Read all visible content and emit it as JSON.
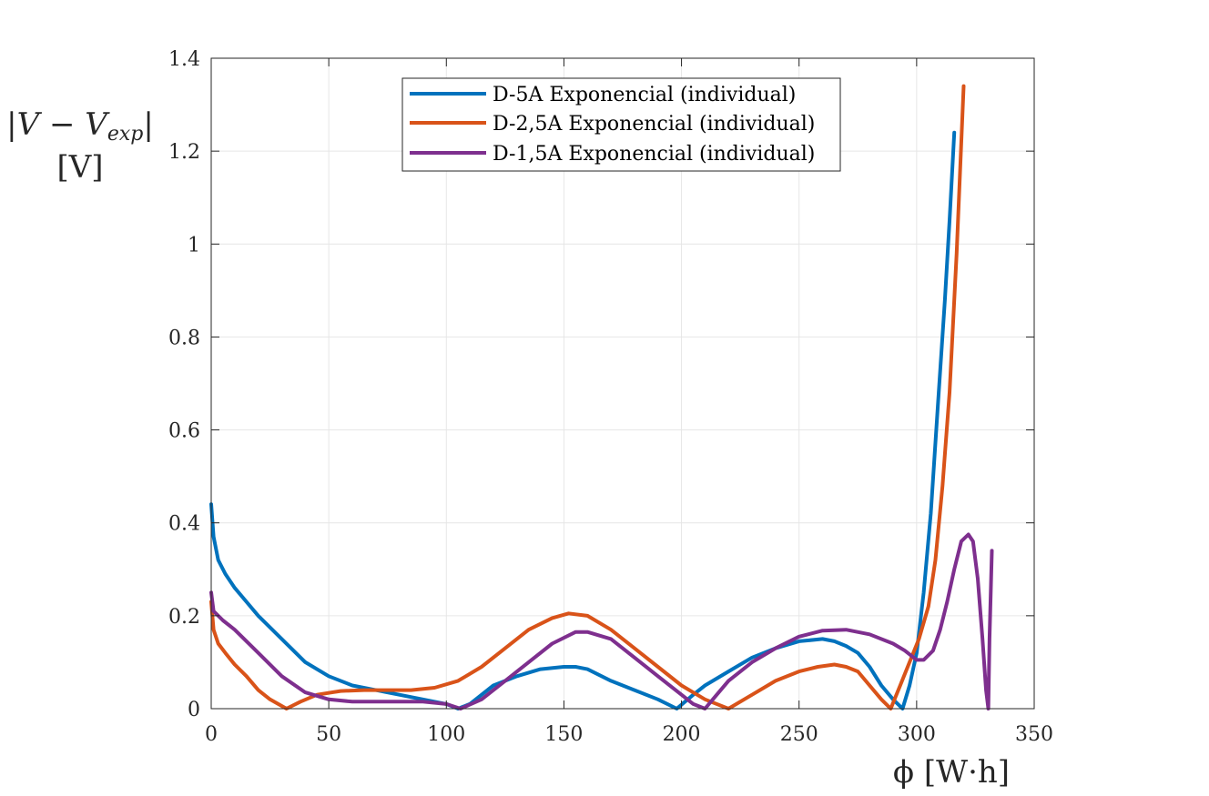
{
  "chart_data": {
    "type": "line",
    "title": "",
    "xlabel": "ϕ [W·h]",
    "ylabel_line1": "|V − V",
    "ylabel_sub": "exp",
    "ylabel_line1_end": "|",
    "ylabel_line2": "[V]",
    "xlim": [
      0,
      350
    ],
    "ylim": [
      0,
      1.4
    ],
    "xticks": [
      0,
      50,
      100,
      150,
      200,
      250,
      300,
      350
    ],
    "xtick_labels": [
      "0",
      "50",
      "100",
      "150",
      "200",
      "250",
      "300",
      "350"
    ],
    "yticks": [
      0,
      0.2,
      0.4,
      0.6,
      0.8,
      1,
      1.2,
      1.4
    ],
    "ytick_labels": [
      "0",
      "0.2",
      "0.4",
      "0.6",
      "0.8",
      "1",
      "1.2",
      "1.4"
    ],
    "grid": true,
    "legend_position": "top-center",
    "series": [
      {
        "name": "D-5A Exponencial (individual)",
        "color": "#0072BD",
        "x": [
          0,
          1,
          3,
          6,
          10,
          15,
          20,
          30,
          40,
          50,
          60,
          70,
          80,
          90,
          100,
          105,
          110,
          115,
          120,
          130,
          140,
          150,
          155,
          160,
          170,
          180,
          190,
          198,
          205,
          210,
          220,
          230,
          240,
          250,
          260,
          265,
          270,
          275,
          280,
          285,
          290,
          294,
          297,
          300,
          303,
          306,
          309,
          312,
          314,
          316
        ],
        "y": [
          0.44,
          0.37,
          0.32,
          0.29,
          0.26,
          0.23,
          0.2,
          0.15,
          0.1,
          0.07,
          0.05,
          0.04,
          0.03,
          0.02,
          0.01,
          0.0,
          0.01,
          0.03,
          0.05,
          0.07,
          0.085,
          0.09,
          0.09,
          0.085,
          0.06,
          0.04,
          0.02,
          0.0,
          0.03,
          0.05,
          0.08,
          0.11,
          0.13,
          0.145,
          0.15,
          0.145,
          0.135,
          0.12,
          0.09,
          0.05,
          0.02,
          0.0,
          0.05,
          0.12,
          0.25,
          0.42,
          0.65,
          0.88,
          1.05,
          1.24
        ]
      },
      {
        "name": "D-2,5A Exponencial (individual)",
        "color": "#D95319",
        "x": [
          0,
          1,
          3,
          6,
          10,
          15,
          20,
          25,
          32,
          38,
          45,
          55,
          65,
          75,
          85,
          95,
          105,
          115,
          125,
          135,
          145,
          152,
          160,
          170,
          180,
          190,
          200,
          210,
          220,
          230,
          240,
          250,
          258,
          265,
          270,
          275,
          280,
          285,
          289,
          293,
          297,
          301,
          305,
          308,
          311,
          314,
          317,
          320
        ],
        "y": [
          0.23,
          0.17,
          0.14,
          0.12,
          0.095,
          0.07,
          0.04,
          0.02,
          0.0,
          0.015,
          0.03,
          0.038,
          0.04,
          0.04,
          0.04,
          0.045,
          0.06,
          0.09,
          0.13,
          0.17,
          0.195,
          0.205,
          0.2,
          0.17,
          0.13,
          0.09,
          0.05,
          0.02,
          0.0,
          0.03,
          0.06,
          0.08,
          0.09,
          0.095,
          0.09,
          0.08,
          0.05,
          0.02,
          0.0,
          0.05,
          0.1,
          0.15,
          0.22,
          0.32,
          0.48,
          0.68,
          0.98,
          1.34
        ]
      },
      {
        "name": "D-1,5A Exponencial (individual)",
        "color": "#7E2F8E",
        "x": [
          0,
          1,
          5,
          10,
          20,
          30,
          40,
          50,
          60,
          70,
          80,
          90,
          100,
          106,
          115,
          125,
          135,
          145,
          155,
          160,
          170,
          180,
          190,
          200,
          205,
          210,
          215,
          220,
          230,
          240,
          250,
          260,
          270,
          280,
          290,
          295,
          300,
          303,
          307,
          310,
          313,
          316,
          319,
          322,
          324,
          326,
          328,
          329.5,
          330.5,
          331,
          332
        ],
        "y": [
          0.25,
          0.21,
          0.19,
          0.17,
          0.12,
          0.07,
          0.035,
          0.02,
          0.015,
          0.015,
          0.015,
          0.015,
          0.01,
          0.0,
          0.02,
          0.06,
          0.1,
          0.14,
          0.165,
          0.165,
          0.15,
          0.11,
          0.07,
          0.03,
          0.01,
          0.0,
          0.03,
          0.06,
          0.1,
          0.13,
          0.155,
          0.168,
          0.17,
          0.16,
          0.14,
          0.125,
          0.105,
          0.105,
          0.125,
          0.17,
          0.23,
          0.3,
          0.36,
          0.375,
          0.36,
          0.28,
          0.15,
          0.04,
          0.0,
          0.15,
          0.34
        ]
      }
    ]
  }
}
